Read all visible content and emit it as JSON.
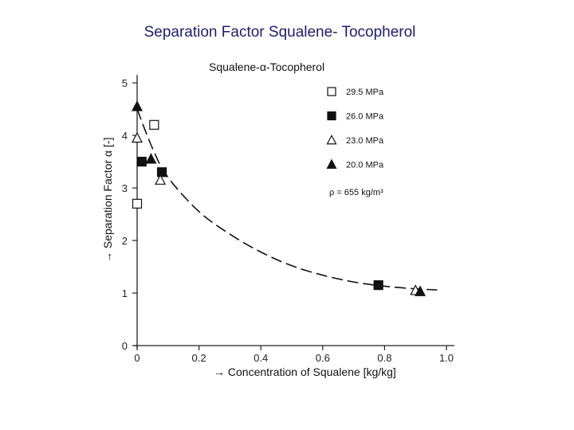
{
  "page": {
    "title": "Separation Factor Squalene- Tocopherol"
  },
  "chart_data": {
    "type": "scatter",
    "title": "Squalene-α-Tocopherol",
    "xlabel": "→ Concentration of Squalene [kg/kg]",
    "ylabel": "→ Separation Factor α [-]",
    "xlim": [
      0,
      1.0
    ],
    "ylim": [
      0,
      5
    ],
    "x_ticks": [
      "0",
      "0.2",
      "0.4",
      "0.6",
      "0.8",
      "1.0"
    ],
    "y_ticks": [
      "0",
      "1",
      "2",
      "3",
      "4",
      "5"
    ],
    "grid": false,
    "legend_position": "top-right",
    "annotation": "ρ = 655 kg/m³",
    "series": [
      {
        "name": "29.5 MPa",
        "marker": "square-open",
        "points": [
          [
            0.0,
            2.7
          ],
          [
            0.055,
            4.2
          ]
        ]
      },
      {
        "name": "26.0 MPa",
        "marker": "square-filled",
        "points": [
          [
            0.015,
            3.5
          ],
          [
            0.08,
            3.3
          ],
          [
            0.78,
            1.15
          ]
        ]
      },
      {
        "name": "23.0 MPa",
        "marker": "triangle-open",
        "points": [
          [
            0.0,
            3.95
          ],
          [
            0.075,
            3.15
          ],
          [
            0.9,
            1.05
          ]
        ]
      },
      {
        "name": "20.0 MPa",
        "marker": "triangle-filled",
        "points": [
          [
            0.0,
            4.55
          ],
          [
            0.045,
            3.55
          ],
          [
            0.915,
            1.03
          ]
        ]
      }
    ],
    "fit_curve": {
      "style": "dashed",
      "points": [
        [
          0.0,
          4.5
        ],
        [
          0.05,
          3.75
        ],
        [
          0.1,
          3.2
        ],
        [
          0.2,
          2.55
        ],
        [
          0.3,
          2.12
        ],
        [
          0.4,
          1.78
        ],
        [
          0.5,
          1.52
        ],
        [
          0.6,
          1.34
        ],
        [
          0.7,
          1.21
        ],
        [
          0.8,
          1.13
        ],
        [
          0.9,
          1.08
        ],
        [
          0.97,
          1.06
        ]
      ]
    }
  }
}
